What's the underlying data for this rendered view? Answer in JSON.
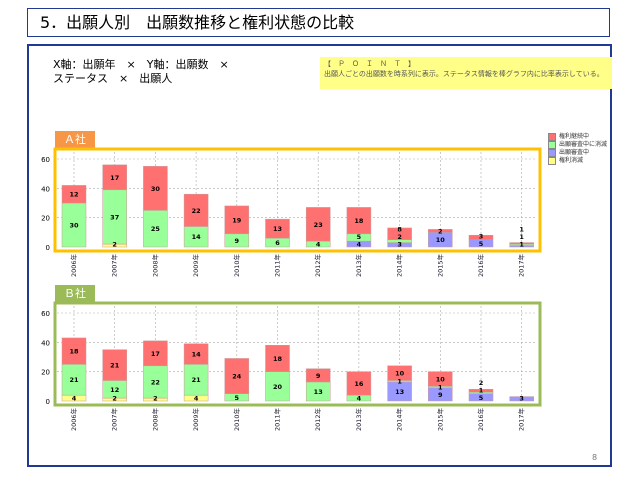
{
  "title": "5．出願人別　出願数推移と権利状態の比較",
  "axes_line1": "X軸：出願年　×　Y軸：出願数　×",
  "axes_line2": "ステータス　×　出願人",
  "point": {
    "heading": "【　Ｐ　Ｏ　Ｉ　Ｎ　Ｔ　】",
    "text": "出願人ごとの出願数を時系列に表示。ステータス情報を棒グラフ内に比率表示している。"
  },
  "page_number": "8",
  "legend": [
    {
      "name": "権利継続中",
      "color": "#ff7070"
    },
    {
      "name": "出願審査中に消滅",
      "color": "#99ff99"
    },
    {
      "name": "出願審査中",
      "color": "#9999ff"
    },
    {
      "name": "権利消滅",
      "color": "#ffff88"
    }
  ],
  "chart_data": [
    {
      "type": "bar",
      "stacked": true,
      "title": "Ａ社",
      "frame_color": "#ffc000",
      "tab_color": "#f79646",
      "categories": [
        "2006年",
        "2007年",
        "2008年",
        "2009年",
        "2010年",
        "2011年",
        "2012年",
        "2013年",
        "2014年",
        "2015年",
        "2016年",
        "2017年"
      ],
      "ylim": [
        0,
        60
      ],
      "yticks": [
        0,
        20,
        40,
        60
      ],
      "grid": true,
      "series": [
        {
          "name": "権利消滅",
          "values": [
            0,
            2,
            0,
            0,
            0,
            0,
            0,
            0,
            0,
            0,
            0,
            0
          ]
        },
        {
          "name": "出願審査中",
          "values": [
            0,
            0,
            0,
            0,
            0,
            0,
            0,
            4,
            3,
            10,
            5,
            1
          ]
        },
        {
          "name": "出願審査中に消滅",
          "values": [
            30,
            37,
            25,
            14,
            9,
            6,
            4,
            5,
            2,
            0,
            0,
            1
          ]
        },
        {
          "name": "権利継続中",
          "values": [
            12,
            17,
            30,
            22,
            19,
            13,
            23,
            18,
            8,
            2,
            3,
            1
          ]
        }
      ]
    },
    {
      "type": "bar",
      "stacked": true,
      "title": "Ｂ社",
      "frame_color": "#9bbb59",
      "tab_color": "#9bbb59",
      "categories": [
        "2006年",
        "2007年",
        "2008年",
        "2009年",
        "2010年",
        "2011年",
        "2012年",
        "2013年",
        "2014年",
        "2015年",
        "2016年",
        "2017年"
      ],
      "ylim": [
        0,
        60
      ],
      "yticks": [
        0,
        20,
        40,
        60
      ],
      "grid": true,
      "series": [
        {
          "name": "権利消滅",
          "values": [
            4,
            2,
            2,
            4,
            0,
            0,
            0,
            0,
            0,
            0,
            0,
            0
          ]
        },
        {
          "name": "出願審査中",
          "values": [
            0,
            0,
            0,
            0,
            0,
            0,
            0,
            0,
            13,
            9,
            5,
            3
          ]
        },
        {
          "name": "出願審査中に消滅",
          "values": [
            21,
            12,
            22,
            21,
            5,
            20,
            13,
            4,
            1,
            1,
            1,
            0
          ]
        },
        {
          "name": "権利継続中",
          "values": [
            18,
            21,
            17,
            14,
            24,
            18,
            9,
            16,
            10,
            10,
            2,
            0
          ]
        }
      ]
    }
  ]
}
